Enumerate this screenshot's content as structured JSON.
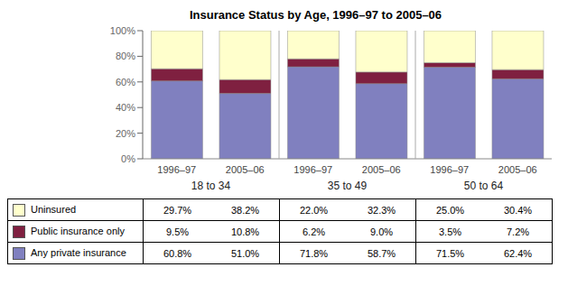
{
  "chart_data": {
    "type": "bar",
    "title": "Insurance Status by Age, 1996–97 to 2005–06",
    "stacked": true,
    "grid": false,
    "categories": [
      "1996–97",
      "2005–06",
      "1996–97",
      "2005–06",
      "1996–97",
      "2005–06"
    ],
    "groups": [
      "18 to 34",
      "35 to 49",
      "50 to 64"
    ],
    "series": [
      {
        "name": "Any private insurance",
        "color": "#8080bf",
        "values": [
          60.8,
          51.0,
          71.8,
          58.7,
          71.5,
          62.4
        ],
        "value_labels": [
          "60.8%",
          "51.0%",
          "71.8%",
          "58.7%",
          "71.5%",
          "62.4%"
        ]
      },
      {
        "name": "Public insurance only",
        "color": "#7f2040",
        "values": [
          9.5,
          10.8,
          6.2,
          9.0,
          3.5,
          7.2
        ],
        "value_labels": [
          "9.5%",
          "10.8%",
          "6.2%",
          "9.0%",
          "3.5%",
          "7.2%"
        ]
      },
      {
        "name": "Uninsured",
        "color": "#ffffcc",
        "values": [
          29.7,
          38.2,
          22.0,
          32.3,
          25.0,
          30.4
        ],
        "value_labels": [
          "29.7%",
          "38.2%",
          "22.0%",
          "32.3%",
          "25.0%",
          "30.4%"
        ]
      }
    ],
    "ylim": [
      0,
      100
    ],
    "yticks": [
      {
        "value": 0,
        "label": "0%"
      },
      {
        "value": 20,
        "label": "20%"
      },
      {
        "value": 40,
        "label": "40%"
      },
      {
        "value": 60,
        "label": "60%"
      },
      {
        "value": 80,
        "label": "80%"
      },
      {
        "value": 100,
        "label": "100%"
      }
    ]
  }
}
